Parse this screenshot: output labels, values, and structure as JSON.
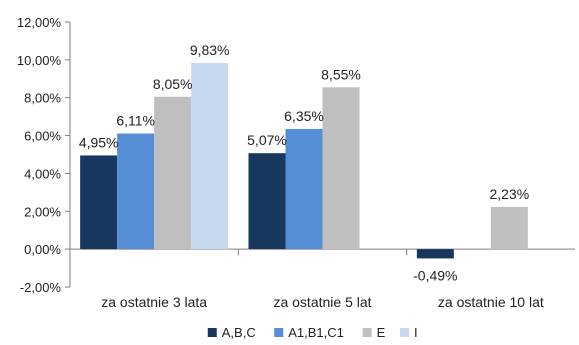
{
  "chart_data": {
    "type": "bar",
    "categories": [
      "za ostatnie 3 lata",
      "za ostatnie 5 lat",
      "za ostatnie 10 lat"
    ],
    "series": [
      {
        "name": "A,B,C",
        "color": "#17375e",
        "values": [
          4.95,
          5.07,
          -0.49
        ],
        "labels": [
          "4,95%",
          "5,07%",
          "-0,49%"
        ]
      },
      {
        "name": "A1,B1,C1",
        "color": "#558ed5",
        "values": [
          6.11,
          6.35,
          null
        ],
        "labels": [
          "6,11%",
          "6,35%",
          ""
        ]
      },
      {
        "name": "E",
        "color": "#bfbfbf",
        "values": [
          8.05,
          8.55,
          2.23
        ],
        "labels": [
          "8,05%",
          "8,55%",
          "2,23%"
        ]
      },
      {
        "name": "I",
        "color": "#c6d9f1",
        "values": [
          9.83,
          null,
          null
        ],
        "labels": [
          "9,83%",
          "",
          ""
        ]
      }
    ],
    "ylim": [
      -2,
      12
    ],
    "ytick_values": [
      -2,
      0,
      2,
      4,
      6,
      8,
      10,
      12
    ],
    "ytick_labels": [
      "-2,00%",
      "0,00%",
      "2,00%",
      "4,00%",
      "6,00%",
      "8,00%",
      "10,00%",
      "12,00%"
    ],
    "legend_placement": "bottom-center",
    "grid": false
  }
}
